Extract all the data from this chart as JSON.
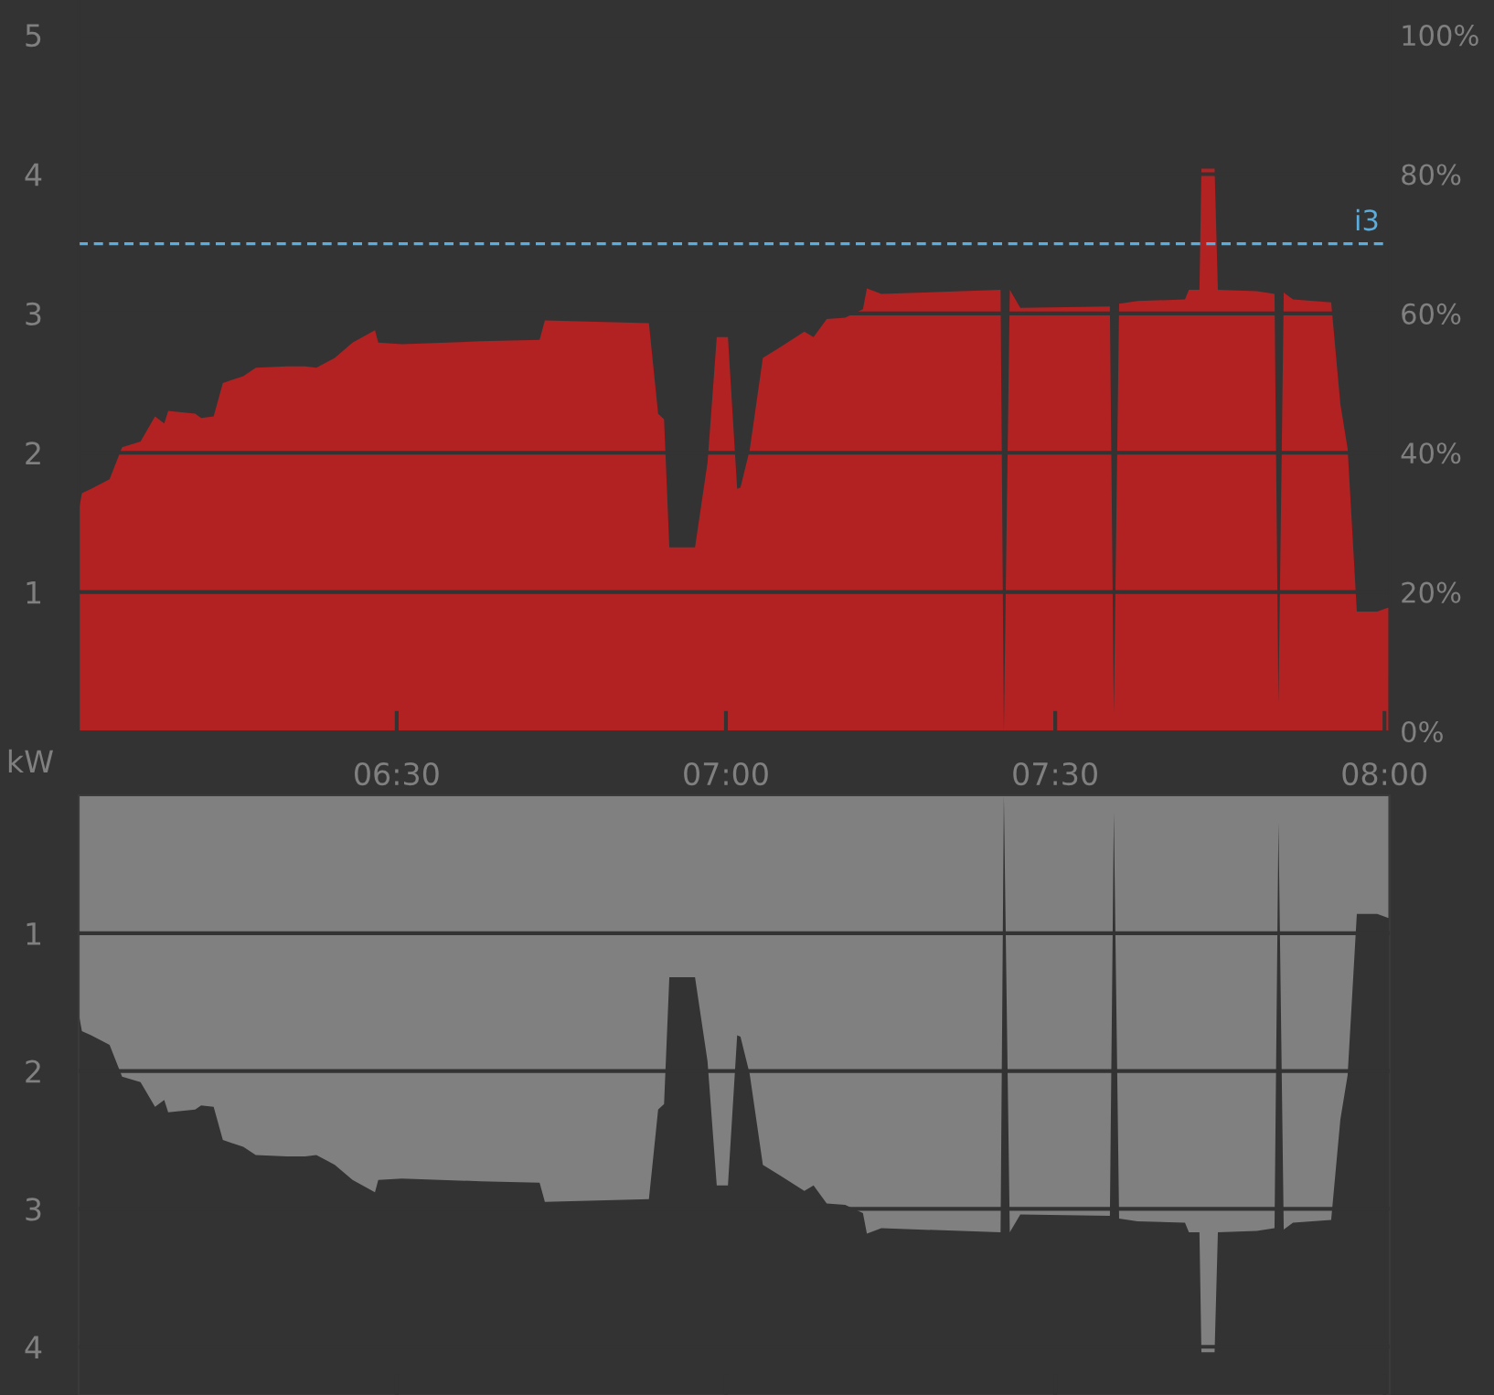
{
  "chart_data": [
    {
      "type": "area",
      "x": [
        6.017,
        6.022,
        6.036,
        6.064,
        6.083,
        6.111,
        6.133,
        6.147,
        6.153,
        6.194,
        6.203,
        6.222,
        6.236,
        6.267,
        6.286,
        6.333,
        6.361,
        6.378,
        6.406,
        6.433,
        6.467,
        6.472,
        6.508,
        6.628,
        6.717,
        6.725,
        6.883,
        6.897,
        6.906,
        6.914,
        6.953,
        6.972,
        6.986,
        7.003,
        7.017,
        7.022,
        7.036,
        7.056,
        7.083,
        7.119,
        7.133,
        7.153,
        7.181,
        7.208,
        7.214,
        7.236,
        7.417,
        7.422,
        7.431,
        7.447,
        7.583,
        7.589,
        7.597,
        7.625,
        7.697,
        7.703,
        7.719,
        7.722,
        7.742,
        7.747,
        7.806,
        7.833,
        7.839,
        7.847,
        7.861,
        7.919,
        7.933,
        7.944,
        7.958,
        7.989,
        8.006
      ],
      "series": [
        {
          "color": "#b22222",
          "values": [
            1.58,
            1.71,
            1.74,
            1.81,
            2.04,
            2.08,
            2.26,
            2.21,
            2.3,
            2.28,
            2.25,
            2.26,
            2.5,
            2.55,
            2.61,
            2.62,
            2.62,
            2.61,
            2.68,
            2.79,
            2.88,
            2.79,
            2.78,
            2.8,
            2.81,
            2.95,
            2.93,
            2.28,
            2.24,
            1.32,
            1.32,
            1.93,
            2.83,
            2.83,
            1.74,
            1.75,
            2.02,
            2.68,
            2.76,
            2.87,
            2.83,
            2.96,
            2.97,
            3.03,
            3.18,
            3.14,
            3.17,
            0,
            3.17,
            3.04,
            3.05,
            0.13,
            3.07,
            3.09,
            3.1,
            3.17,
            3.17,
            4.04,
            4.04,
            3.17,
            3.16,
            3.14,
            0.2,
            3.15,
            3.1,
            3.08,
            2.35,
            2.03,
            0.86,
            0.86,
            0.89
          ]
        }
      ],
      "xlim": [
        6.017,
        8.008
      ],
      "xticks": [
        {
          "value": 6.5,
          "label": "06:30"
        },
        {
          "value": 7,
          "label": "07:00"
        },
        {
          "value": 7.5,
          "label": "07:30"
        },
        {
          "value": 8,
          "label": "08:00"
        }
      ],
      "ylim": [
        0,
        5.25
      ],
      "yticks": [
        1,
        2,
        3,
        4,
        5
      ],
      "y2lim": [
        0,
        105
      ],
      "y2ticks": [
        {
          "value": 0,
          "label": "0%"
        },
        {
          "value": 20,
          "label": "20%"
        },
        {
          "value": 40,
          "label": "40%"
        },
        {
          "value": 60,
          "label": "60%"
        },
        {
          "value": 80,
          "label": "80%"
        },
        {
          "value": 100,
          "label": "100%"
        }
      ],
      "ref_lines": [
        {
          "axis": "y",
          "value": 3.5,
          "label": "i3",
          "color": "#5aaddf",
          "line_style": "dashed"
        }
      ],
      "grid": "y"
    },
    {
      "type": "area",
      "ylabel": "kW",
      "x": [
        6.017,
        6.022,
        6.036,
        6.064,
        6.083,
        6.111,
        6.133,
        6.147,
        6.153,
        6.194,
        6.203,
        6.222,
        6.236,
        6.267,
        6.286,
        6.333,
        6.361,
        6.378,
        6.406,
        6.433,
        6.467,
        6.472,
        6.508,
        6.628,
        6.717,
        6.725,
        6.883,
        6.897,
        6.906,
        6.914,
        6.953,
        6.972,
        6.986,
        7.003,
        7.017,
        7.022,
        7.036,
        7.056,
        7.083,
        7.119,
        7.133,
        7.153,
        7.181,
        7.208,
        7.214,
        7.236,
        7.417,
        7.422,
        7.431,
        7.447,
        7.583,
        7.589,
        7.597,
        7.625,
        7.697,
        7.703,
        7.719,
        7.722,
        7.742,
        7.747,
        7.806,
        7.833,
        7.839,
        7.847,
        7.861,
        7.919,
        7.933,
        7.944,
        7.958,
        7.989,
        8.006
      ],
      "series": [
        {
          "color": "#808080",
          "values": [
            1.58,
            1.71,
            1.74,
            1.81,
            2.04,
            2.08,
            2.26,
            2.21,
            2.3,
            2.28,
            2.25,
            2.26,
            2.5,
            2.55,
            2.61,
            2.62,
            2.62,
            2.61,
            2.68,
            2.79,
            2.88,
            2.79,
            2.78,
            2.8,
            2.81,
            2.95,
            2.93,
            2.28,
            2.24,
            1.32,
            1.32,
            1.93,
            2.83,
            2.83,
            1.74,
            1.75,
            2.02,
            2.68,
            2.76,
            2.87,
            2.83,
            2.96,
            2.97,
            3.03,
            3.18,
            3.14,
            3.17,
            0,
            3.17,
            3.04,
            3.05,
            0.13,
            3.07,
            3.09,
            3.1,
            3.17,
            3.17,
            4.04,
            4.04,
            3.17,
            3.16,
            3.14,
            0.2,
            3.15,
            3.1,
            3.08,
            2.35,
            2.03,
            0.86,
            0.86,
            0.89
          ]
        }
      ],
      "xlim": [
        6.017,
        8.008
      ],
      "xticks": [
        {
          "value": 6.5,
          "label": null
        },
        {
          "value": 7,
          "label": null
        },
        {
          "value": 7.5,
          "label": null
        },
        {
          "value": 8,
          "label": null
        }
      ],
      "ylim": [
        4.35,
        0
      ],
      "yticks": [
        1,
        2,
        3,
        4
      ],
      "tick_labels": "y",
      "grid": "y"
    }
  ]
}
